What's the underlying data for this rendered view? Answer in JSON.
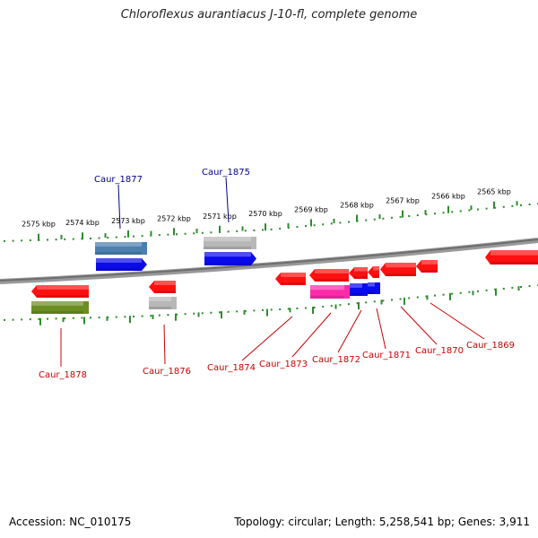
{
  "title": "Chloroflexus aurantiacus J-10-fl, complete genome",
  "footer": {
    "accession": "Accession: NC_010175",
    "stats": "Topology: circular; Length: 5,258,541 bp; Genes: 3,911"
  },
  "colors": {
    "backbone": "#7a7a7a",
    "ruler": "#2e8b2e",
    "forward_label": "#00008b",
    "reverse_label": "#cc0000",
    "red": "#ff1010",
    "blue": "#0a0aee",
    "steel": "#4a7fb0",
    "gray": "#b8b8b8",
    "olive": "#6b8e23",
    "magenta": "#ff2aaa"
  },
  "ruler": {
    "labels": [
      "2575 kbp",
      "2574 kbp",
      "2573 kbp",
      "2572 kbp",
      "2571 kbp",
      "2570 kbp",
      "2569 kbp",
      "2568 kbp",
      "2567 kbp",
      "2566 kbp",
      "2565 kbp"
    ]
  },
  "genes": [
    {
      "name": "Caur_1878",
      "label": "Caur_1878"
    },
    {
      "name": "Caur_1877",
      "label": "Caur_1877"
    },
    {
      "name": "Caur_1876",
      "label": "Caur_1876"
    },
    {
      "name": "Caur_1875",
      "label": "Caur_1875"
    },
    {
      "name": "Caur_1874",
      "label": "Caur_1874"
    },
    {
      "name": "Caur_1873",
      "label": "Caur_1873"
    },
    {
      "name": "Caur_1872",
      "label": "Caur_1872"
    },
    {
      "name": "Caur_1871",
      "label": "Caur_1871"
    },
    {
      "name": "Caur_1870",
      "label": "Caur_1870"
    },
    {
      "name": "Caur_1869",
      "label": "Caur_1869"
    }
  ]
}
